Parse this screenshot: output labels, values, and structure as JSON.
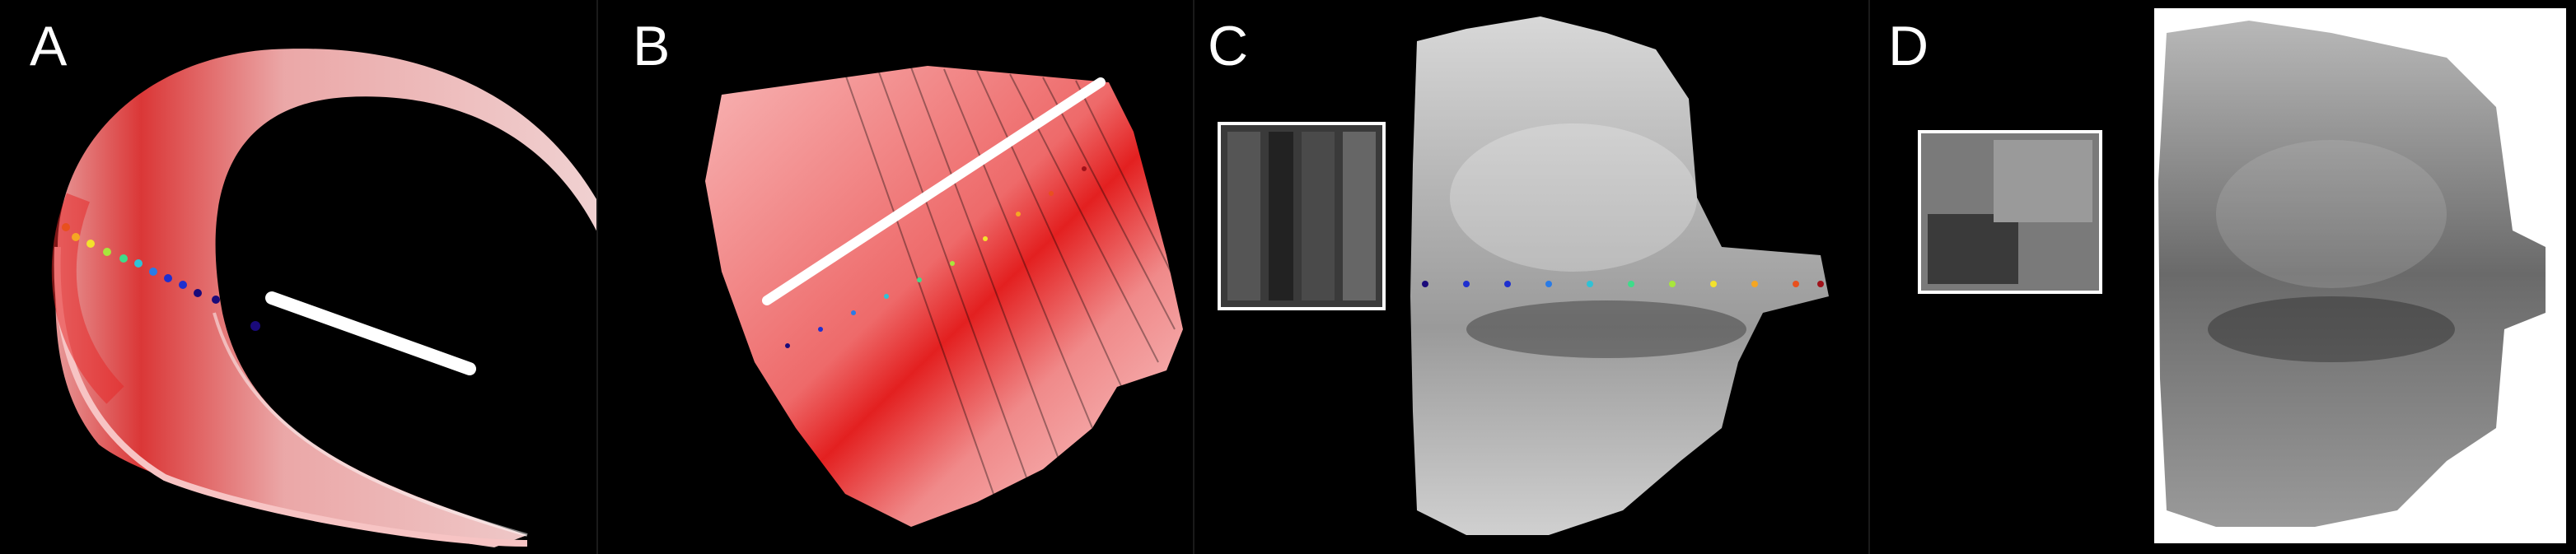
{
  "panels": [
    {
      "label": "A"
    },
    {
      "label": "B"
    },
    {
      "label": "C"
    },
    {
      "label": "D"
    }
  ],
  "colors": {
    "background": "#000000",
    "heat_light": "#ffd8d8",
    "heat_strong": "#e81818",
    "probe": "#ffffff",
    "gray_light": "#e6e6e6",
    "gray_dark": "#2e2e2e",
    "inset_border": "#ffffff"
  },
  "dot_colors": [
    "#1a0a7a",
    "#1e2fcf",
    "#2a7be6",
    "#2fc2d6",
    "#3fdc8a",
    "#a8e63c",
    "#f3e22c",
    "#f5a623",
    "#e8501e",
    "#a0121a"
  ]
}
